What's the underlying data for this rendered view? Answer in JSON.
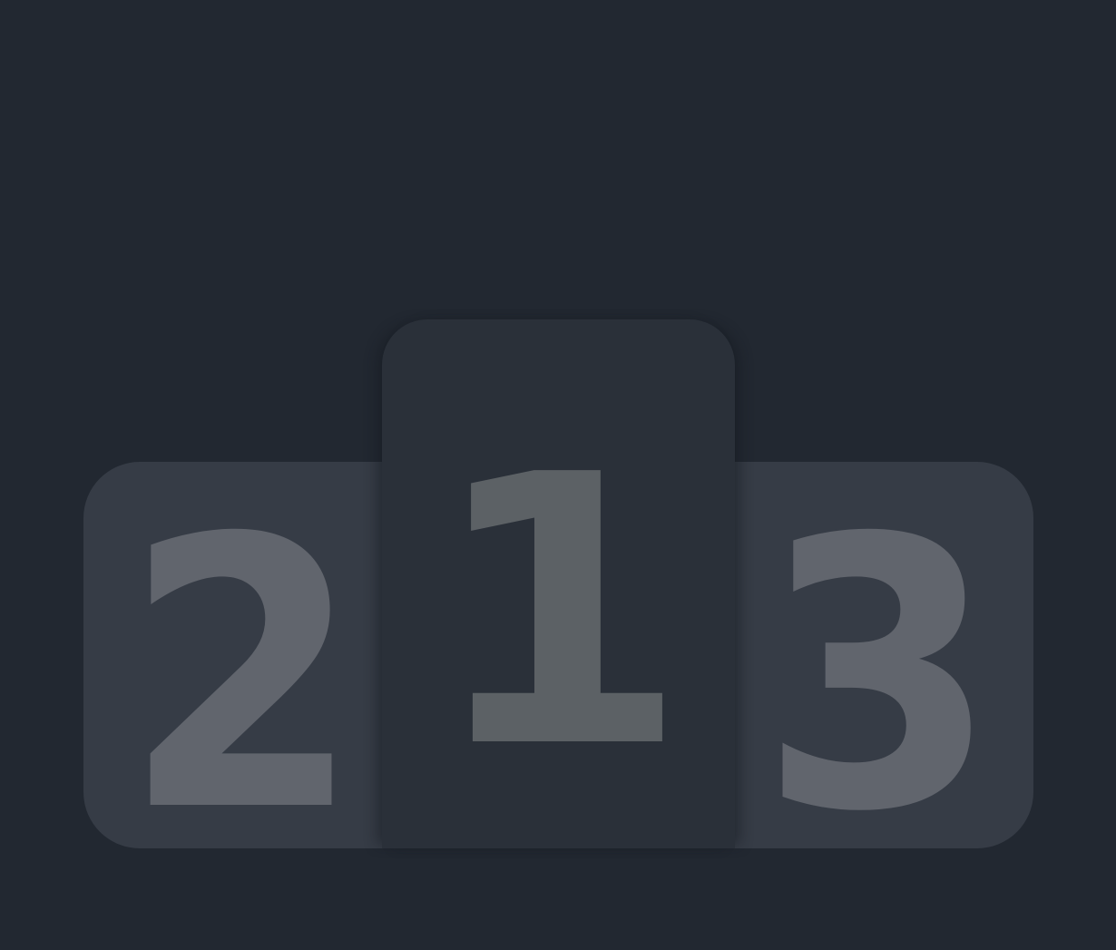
{
  "podium": {
    "places": [
      {
        "rank": "2",
        "color": "#363c46"
      },
      {
        "rank": "1",
        "color": "#2a3039"
      },
      {
        "rank": "3",
        "color": "#363c46"
      }
    ],
    "background": "#222831",
    "numeral_color": "#61656d"
  }
}
